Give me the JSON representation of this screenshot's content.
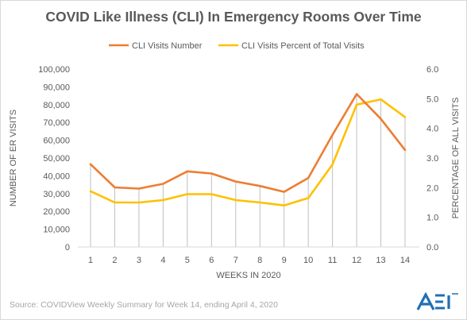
{
  "header": {
    "title": "COVID Like Illness (CLI) In Emergency Rooms Over Time"
  },
  "footer": {
    "source": "Source: COVIDView Weekly Summary for Week 14, ending April 4, 2020",
    "logo_text": "AEI"
  },
  "colors": {
    "series_number": "#ED7D31",
    "series_percent": "#FFC000",
    "drop_lines": "#BFBFBF",
    "text": "#595959",
    "logo": "#1F6FB5"
  },
  "chart_data": {
    "type": "line",
    "title": "COVID Like Illness (CLI) In Emergency Rooms Over Time",
    "xlabel": "WEEKS IN 2020",
    "ylabel": "NUMBER OF ER VISITS",
    "ylabel_right": "PERCENTAGE OF ALL VISITS",
    "x": [
      1,
      2,
      3,
      4,
      5,
      6,
      7,
      8,
      9,
      10,
      11,
      12,
      13,
      14
    ],
    "ylim": [
      0,
      100000
    ],
    "ylim_right": [
      0,
      6
    ],
    "yticks": [
      "0",
      "10,000",
      "20,000",
      "30,000",
      "40,000",
      "50,000",
      "60,000",
      "70,000",
      "80,000",
      "90,000",
      "100,000"
    ],
    "yticks_right": [
      "0.0",
      "1.0",
      "2.0",
      "3.0",
      "4.0",
      "5.0",
      "6.0"
    ],
    "legend_position": "top",
    "grid": false,
    "drop_lines": true,
    "series": [
      {
        "name": "CLI Visits Number",
        "axis": "left",
        "values": [
          46500,
          33500,
          32800,
          35500,
          42500,
          41300,
          36800,
          34300,
          31000,
          38800,
          63000,
          86000,
          72000,
          54500
        ]
      },
      {
        "name": "CLI Visits Percent of Total Visits",
        "axis": "right",
        "values": [
          1.88,
          1.5,
          1.5,
          1.58,
          1.78,
          1.78,
          1.58,
          1.5,
          1.4,
          1.65,
          2.78,
          4.8,
          4.98,
          4.38
        ]
      }
    ]
  }
}
